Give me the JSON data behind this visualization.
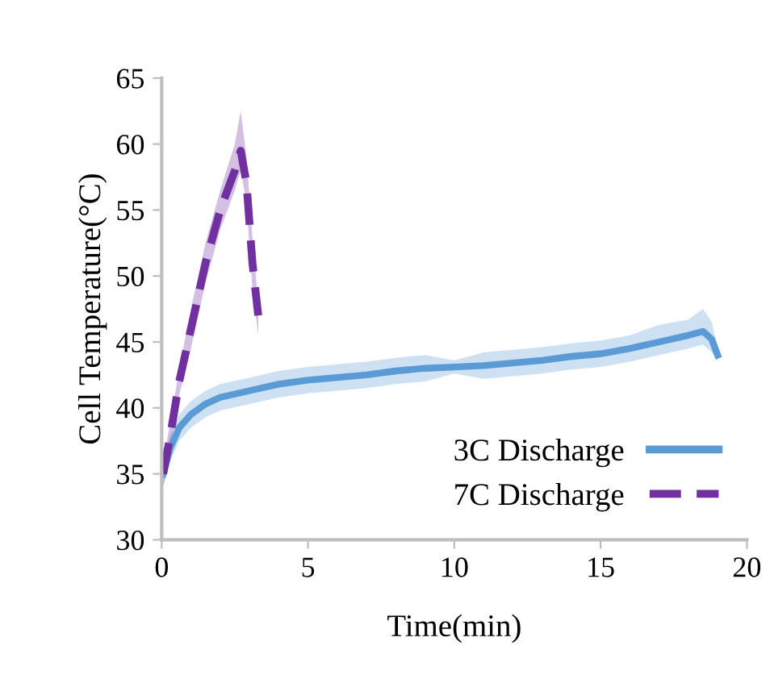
{
  "chart_data": {
    "type": "line",
    "xlabel": "Time(min)",
    "ylabel": "Cell Temperature(°C)",
    "xlim": [
      0,
      20
    ],
    "xticks": [
      0,
      5,
      10,
      15,
      20
    ],
    "ylim": [
      30,
      65
    ],
    "yticks": [
      30,
      35,
      40,
      45,
      50,
      55,
      60,
      65
    ],
    "grid": false,
    "legend": "bottom right",
    "marker": "none",
    "series": [
      {
        "name": "3C Discharge",
        "color": "#5b9bd5",
        "line_style": "solid",
        "x": [
          0.05,
          0.3,
          0.6,
          1,
          1.5,
          2,
          3,
          4,
          5,
          6,
          7,
          8,
          9,
          10,
          11,
          12,
          13,
          14,
          15,
          16,
          17,
          18,
          18.5,
          18.8,
          19
        ],
        "values": [
          35,
          37,
          38.5,
          39.5,
          40.3,
          40.8,
          41.3,
          41.8,
          42.1,
          42.3,
          42.5,
          42.8,
          43,
          43.1,
          43.2,
          43.4,
          43.6,
          43.9,
          44.1,
          44.5,
          45,
          45.5,
          45.8,
          45.2,
          44
        ],
        "lower": [
          34,
          36,
          37.5,
          38.5,
          39.3,
          39.8,
          40.3,
          40.8,
          41.1,
          41.3,
          41.5,
          41.8,
          42,
          42.6,
          42.2,
          42.4,
          42.6,
          42.9,
          43.1,
          43.5,
          44,
          44.5,
          44.8,
          44.2,
          43.5
        ],
        "upper": [
          36,
          38,
          39.5,
          40.5,
          41.3,
          41.8,
          42.3,
          42.8,
          43.1,
          43.3,
          43.5,
          43.8,
          44,
          43.6,
          44.2,
          44.4,
          44.6,
          44.9,
          45.1,
          45.5,
          46.3,
          46.7,
          47.5,
          46.5,
          44.5
        ]
      },
      {
        "name": "7C Discharge",
        "color": "#7030a0",
        "line_style": "dashed",
        "x": [
          0.05,
          0.3,
          0.6,
          1,
          1.5,
          2,
          2.5,
          2.7,
          2.9,
          3.1,
          3.3
        ],
        "values": [
          35,
          38,
          42,
          46,
          51,
          55,
          58,
          59.5,
          57,
          51,
          47
        ],
        "lower": [
          34,
          37,
          41,
          44.5,
          49.5,
          53.5,
          56.5,
          58,
          55.5,
          49,
          45.5
        ],
        "upper": [
          36,
          39,
          43,
          47.5,
          52.5,
          56.5,
          60,
          62.5,
          59,
          53,
          48
        ]
      }
    ]
  }
}
